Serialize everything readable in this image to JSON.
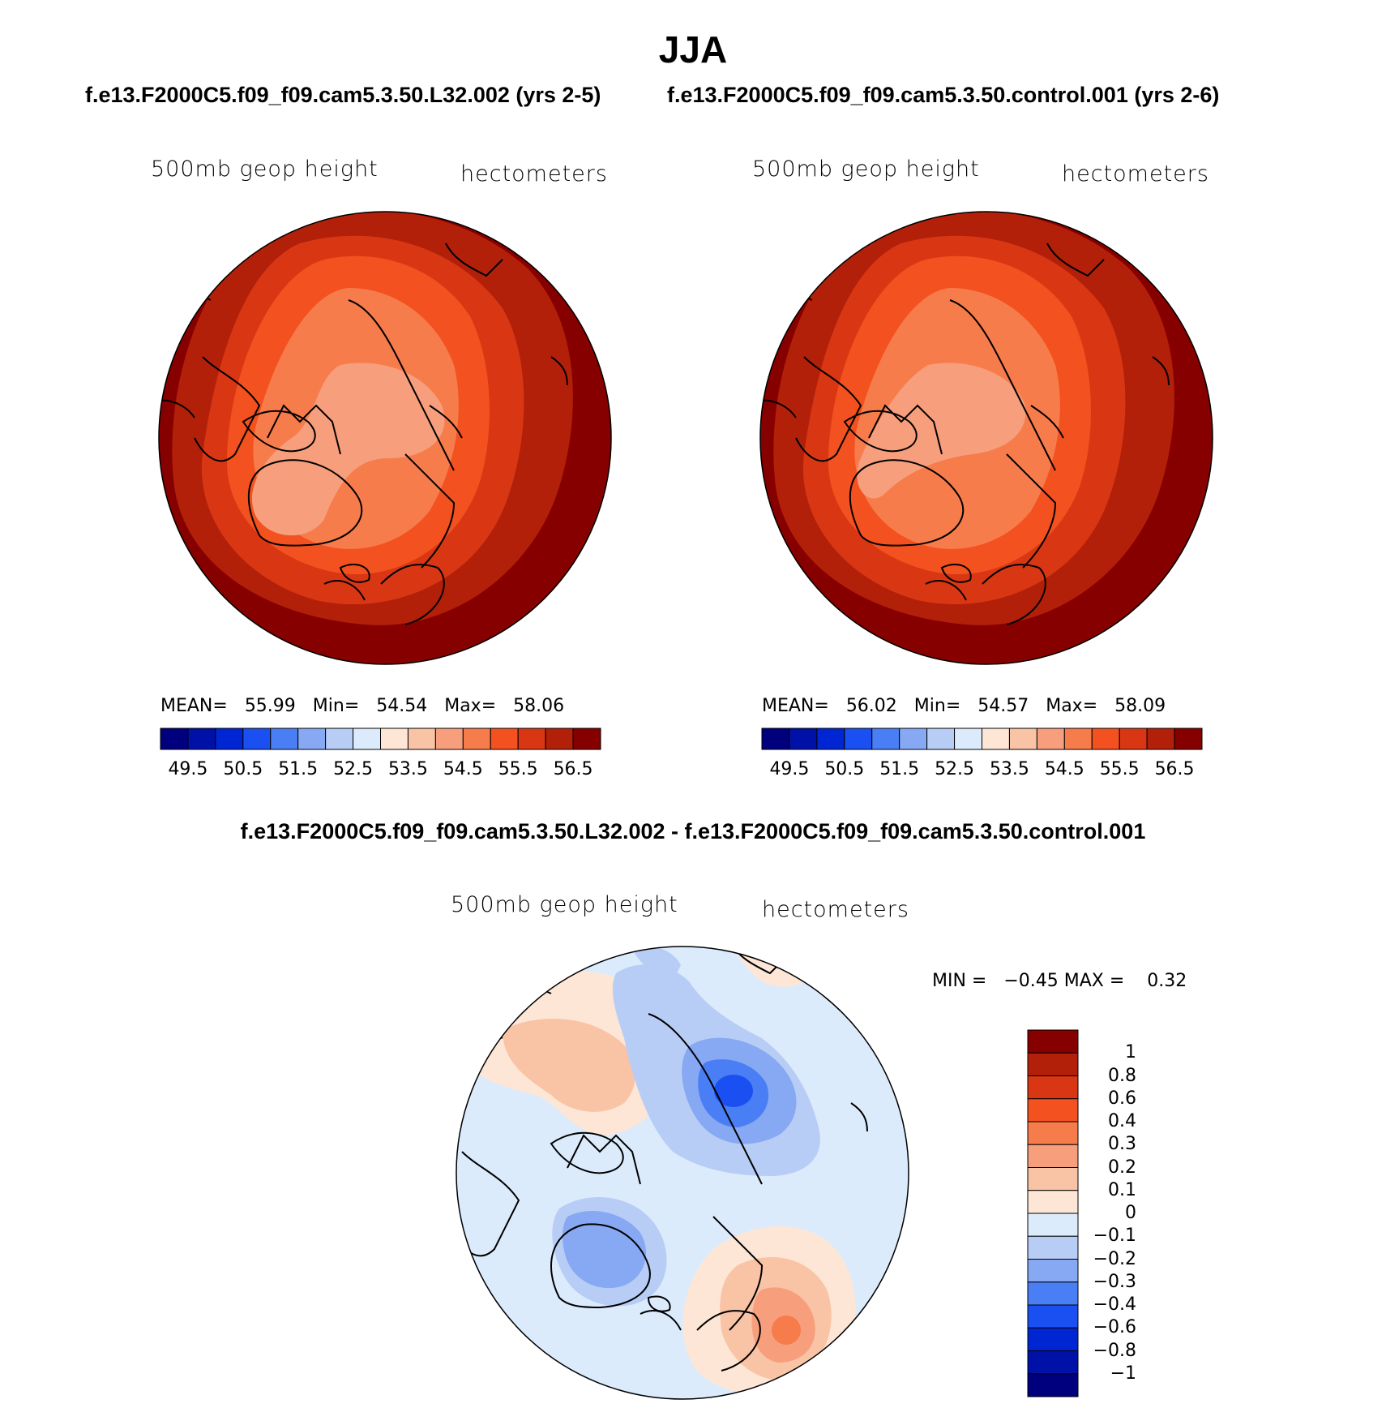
{
  "figure": {
    "title": "JJA",
    "panels": [
      {
        "run_title": "f.e13.F2000C5.f09_f09.cam5.3.50.L32.002 (yrs 2-5)",
        "variable": "500mb geop height",
        "units": "hectometers",
        "stats": {
          "mean_label": "MEAN=",
          "mean": "55.99",
          "min_label": "Min=",
          "min": "54.54",
          "max_label": "Max=",
          "max": "58.06"
        },
        "colorbar_ticks": [
          "49.5",
          "50.5",
          "51.5",
          "52.5",
          "53.5",
          "54.5",
          "55.5",
          "56.5"
        ]
      },
      {
        "run_title": "f.e13.F2000C5.f09_f09.cam5.3.50.control.001 (yrs 2-6)",
        "variable": "500mb geop height",
        "units": "hectometers",
        "stats": {
          "mean_label": "MEAN=",
          "mean": "56.02",
          "min_label": "Min=",
          "min": "54.57",
          "max_label": "Max=",
          "max": "58.09"
        },
        "colorbar_ticks": [
          "49.5",
          "50.5",
          "51.5",
          "52.5",
          "53.5",
          "54.5",
          "55.5",
          "56.5"
        ]
      }
    ],
    "difference": {
      "title": "f.e13.F2000C5.f09_f09.cam5.3.50.L32.002 - f.e13.F2000C5.f09_f09.cam5.3.50.control.001",
      "variable": "500mb geop height",
      "units": "hectometers",
      "stats": {
        "min_label": "MIN =",
        "min": "−0.45",
        "max_label": "MAX =",
        "max": "0.32"
      },
      "colorbar_ticks": [
        "1",
        "0.8",
        "0.6",
        "0.4",
        "0.3",
        "0.2",
        "0.1",
        "0",
        "−0.1",
        "−0.2",
        "−0.3",
        "−0.4",
        "−0.6",
        "−0.8",
        "−1"
      ]
    }
  },
  "colors": {
    "field_scale": [
      "#00007f",
      "#0011a8",
      "#0026d4",
      "#1a4ff2",
      "#4a7ef4",
      "#87a8f2",
      "#b8cdf6",
      "#dcebfc",
      "#fde6d5",
      "#f9c3a6",
      "#f79f7d",
      "#f77c4b",
      "#f3511f",
      "#d93714",
      "#b3200a",
      "#870000"
    ],
    "diff_scale": [
      "#870000",
      "#b3200a",
      "#d93714",
      "#f3511f",
      "#f77c4b",
      "#f79f7d",
      "#f9c3a6",
      "#fde6d5",
      "#dcebfc",
      "#b8cdf6",
      "#87a8f2",
      "#4a7ef4",
      "#1a4ff2",
      "#0026d4",
      "#0011a8",
      "#00007f"
    ]
  }
}
